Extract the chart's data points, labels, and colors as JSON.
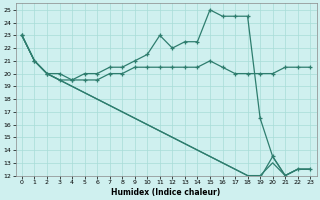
{
  "title": "",
  "xlabel": "Humidex (Indice chaleur)",
  "xlim": [
    -0.5,
    23.5
  ],
  "ylim": [
    12,
    25.5
  ],
  "xticks": [
    0,
    1,
    2,
    3,
    4,
    5,
    6,
    7,
    8,
    9,
    10,
    11,
    12,
    13,
    14,
    15,
    16,
    17,
    18,
    19,
    20,
    21,
    22,
    23
  ],
  "yticks": [
    12,
    13,
    14,
    15,
    16,
    17,
    18,
    19,
    20,
    21,
    22,
    23,
    24,
    25
  ],
  "bg_color": "#cff0ef",
  "line_color": "#2e7d6e",
  "grid_color": "#a8ddd8",
  "line1_x": [
    0,
    1,
    2,
    3,
    4,
    5,
    6,
    7,
    8,
    9,
    10,
    11,
    12,
    13,
    14,
    15,
    16,
    17,
    18,
    19,
    20,
    21,
    22,
    23
  ],
  "line1_y": [
    23,
    21,
    20,
    20,
    19.5,
    20,
    20,
    20.5,
    20.5,
    21,
    21.5,
    23,
    22,
    22.5,
    22.5,
    25,
    24.5,
    24.5,
    24.5,
    16.5,
    13.5,
    12,
    12.5,
    12.5
  ],
  "line2_x": [
    0,
    1,
    2,
    3,
    4,
    5,
    6,
    7,
    8,
    9,
    10,
    11,
    12,
    13,
    14,
    15,
    16,
    17,
    18,
    19,
    20,
    21,
    22,
    23
  ],
  "line2_y": [
    23,
    21,
    20,
    19.5,
    19.5,
    19.5,
    19.5,
    20,
    20,
    20.5,
    20.5,
    20.5,
    20.5,
    20.5,
    20.5,
    21,
    20.5,
    20,
    20,
    20,
    20,
    20.5,
    20.5,
    20.5
  ],
  "line3_x": [
    0,
    1,
    2,
    3,
    4,
    5,
    6,
    7,
    8,
    9,
    10,
    11,
    12,
    13,
    14,
    15,
    16,
    17,
    18,
    19,
    20,
    21,
    22,
    23
  ],
  "line3_y": [
    23,
    21,
    20,
    19.5,
    19,
    18.5,
    18,
    17.5,
    17,
    16.5,
    16,
    15.5,
    15,
    14.5,
    14,
    13.5,
    13,
    12.5,
    12,
    12,
    13,
    12,
    12.5,
    12.5
  ],
  "line4_x": [
    0,
    1,
    2,
    3,
    4,
    5,
    6,
    7,
    8,
    9,
    10,
    11,
    12,
    13,
    14,
    15,
    16,
    17,
    18,
    19,
    20,
    21,
    22,
    23
  ],
  "line4_y": [
    23,
    21,
    20,
    19.5,
    19,
    18.5,
    18,
    17.5,
    17,
    16.5,
    16,
    15.5,
    15,
    14.5,
    14,
    13.5,
    13,
    12.5,
    12,
    11.8,
    13.5,
    12,
    12.5,
    12.5
  ]
}
